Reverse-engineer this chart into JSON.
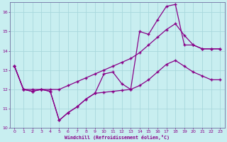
{
  "xlabel": "Windchill (Refroidissement éolien,°C)",
  "bg_color": "#c8eef0",
  "grid_color": "#a8d8dc",
  "line_color": "#880088",
  "xlim": [
    -0.5,
    23.5
  ],
  "ylim": [
    10,
    16.5
  ],
  "yticks": [
    10,
    11,
    12,
    13,
    14,
    15,
    16
  ],
  "xticks": [
    0,
    1,
    2,
    3,
    4,
    5,
    6,
    7,
    8,
    9,
    10,
    11,
    12,
    13,
    14,
    15,
    16,
    17,
    18,
    19,
    20,
    21,
    22,
    23
  ],
  "line1_x": [
    0,
    1,
    2,
    3,
    4,
    5,
    6,
    7,
    8,
    9,
    10,
    11,
    12,
    13,
    14,
    15,
    16,
    17,
    18,
    19,
    20,
    21,
    22,
    23
  ],
  "line1_y": [
    13.2,
    12.0,
    11.9,
    12.0,
    11.9,
    10.4,
    10.8,
    11.1,
    11.5,
    11.8,
    12.8,
    12.9,
    12.3,
    12.0,
    15.0,
    14.85,
    15.6,
    16.3,
    16.4,
    14.3,
    14.3,
    14.1,
    14.1,
    14.1
  ],
  "line2_x": [
    0,
    1,
    2,
    3,
    4,
    5,
    6,
    7,
    8,
    9,
    10,
    11,
    12,
    13,
    14,
    15,
    16,
    17,
    18,
    19,
    20,
    21,
    22,
    23
  ],
  "line2_y": [
    13.2,
    12.0,
    12.0,
    12.0,
    12.0,
    12.0,
    12.2,
    12.4,
    12.6,
    12.8,
    13.0,
    13.2,
    13.4,
    13.6,
    13.9,
    14.3,
    14.7,
    15.1,
    15.4,
    14.8,
    14.3,
    14.1,
    14.1,
    14.1
  ],
  "line3_x": [
    0,
    1,
    2,
    3,
    4,
    5,
    6,
    7,
    8,
    9,
    10,
    11,
    12,
    13,
    14,
    15,
    16,
    17,
    18,
    19,
    20,
    21,
    22,
    23
  ],
  "line3_y": [
    13.2,
    12.0,
    11.9,
    12.0,
    11.9,
    10.4,
    10.8,
    11.1,
    11.5,
    11.8,
    11.85,
    11.9,
    11.95,
    12.0,
    12.2,
    12.5,
    12.9,
    13.3,
    13.5,
    13.2,
    12.9,
    12.7,
    12.5,
    12.5
  ]
}
